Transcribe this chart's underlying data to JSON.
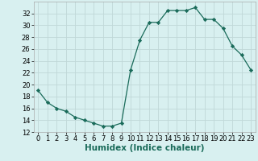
{
  "x": [
    0,
    1,
    2,
    3,
    4,
    5,
    6,
    7,
    8,
    9,
    10,
    11,
    12,
    13,
    14,
    15,
    16,
    17,
    18,
    19,
    20,
    21,
    22,
    23
  ],
  "y": [
    19,
    17,
    16,
    15.5,
    14.5,
    14,
    13.5,
    13,
    13,
    13.5,
    22.5,
    27.5,
    30.5,
    30.5,
    32.5,
    32.5,
    32.5,
    33,
    31,
    31,
    29.5,
    26.5,
    25,
    22.5
  ],
  "xlabel": "Humidex (Indice chaleur)",
  "xlim": [
    -0.5,
    23.5
  ],
  "ylim": [
    12,
    34
  ],
  "yticks": [
    12,
    14,
    16,
    18,
    20,
    22,
    24,
    26,
    28,
    30,
    32
  ],
  "xticks": [
    0,
    1,
    2,
    3,
    4,
    5,
    6,
    7,
    8,
    9,
    10,
    11,
    12,
    13,
    14,
    15,
    16,
    17,
    18,
    19,
    20,
    21,
    22,
    23
  ],
  "line_color": "#1a6b5a",
  "marker": "D",
  "marker_size": 2.2,
  "bg_color": "#d8f0f0",
  "grid_color": "#c0d8d8",
  "tick_label_fontsize": 6.0,
  "xlabel_fontsize": 7.5
}
